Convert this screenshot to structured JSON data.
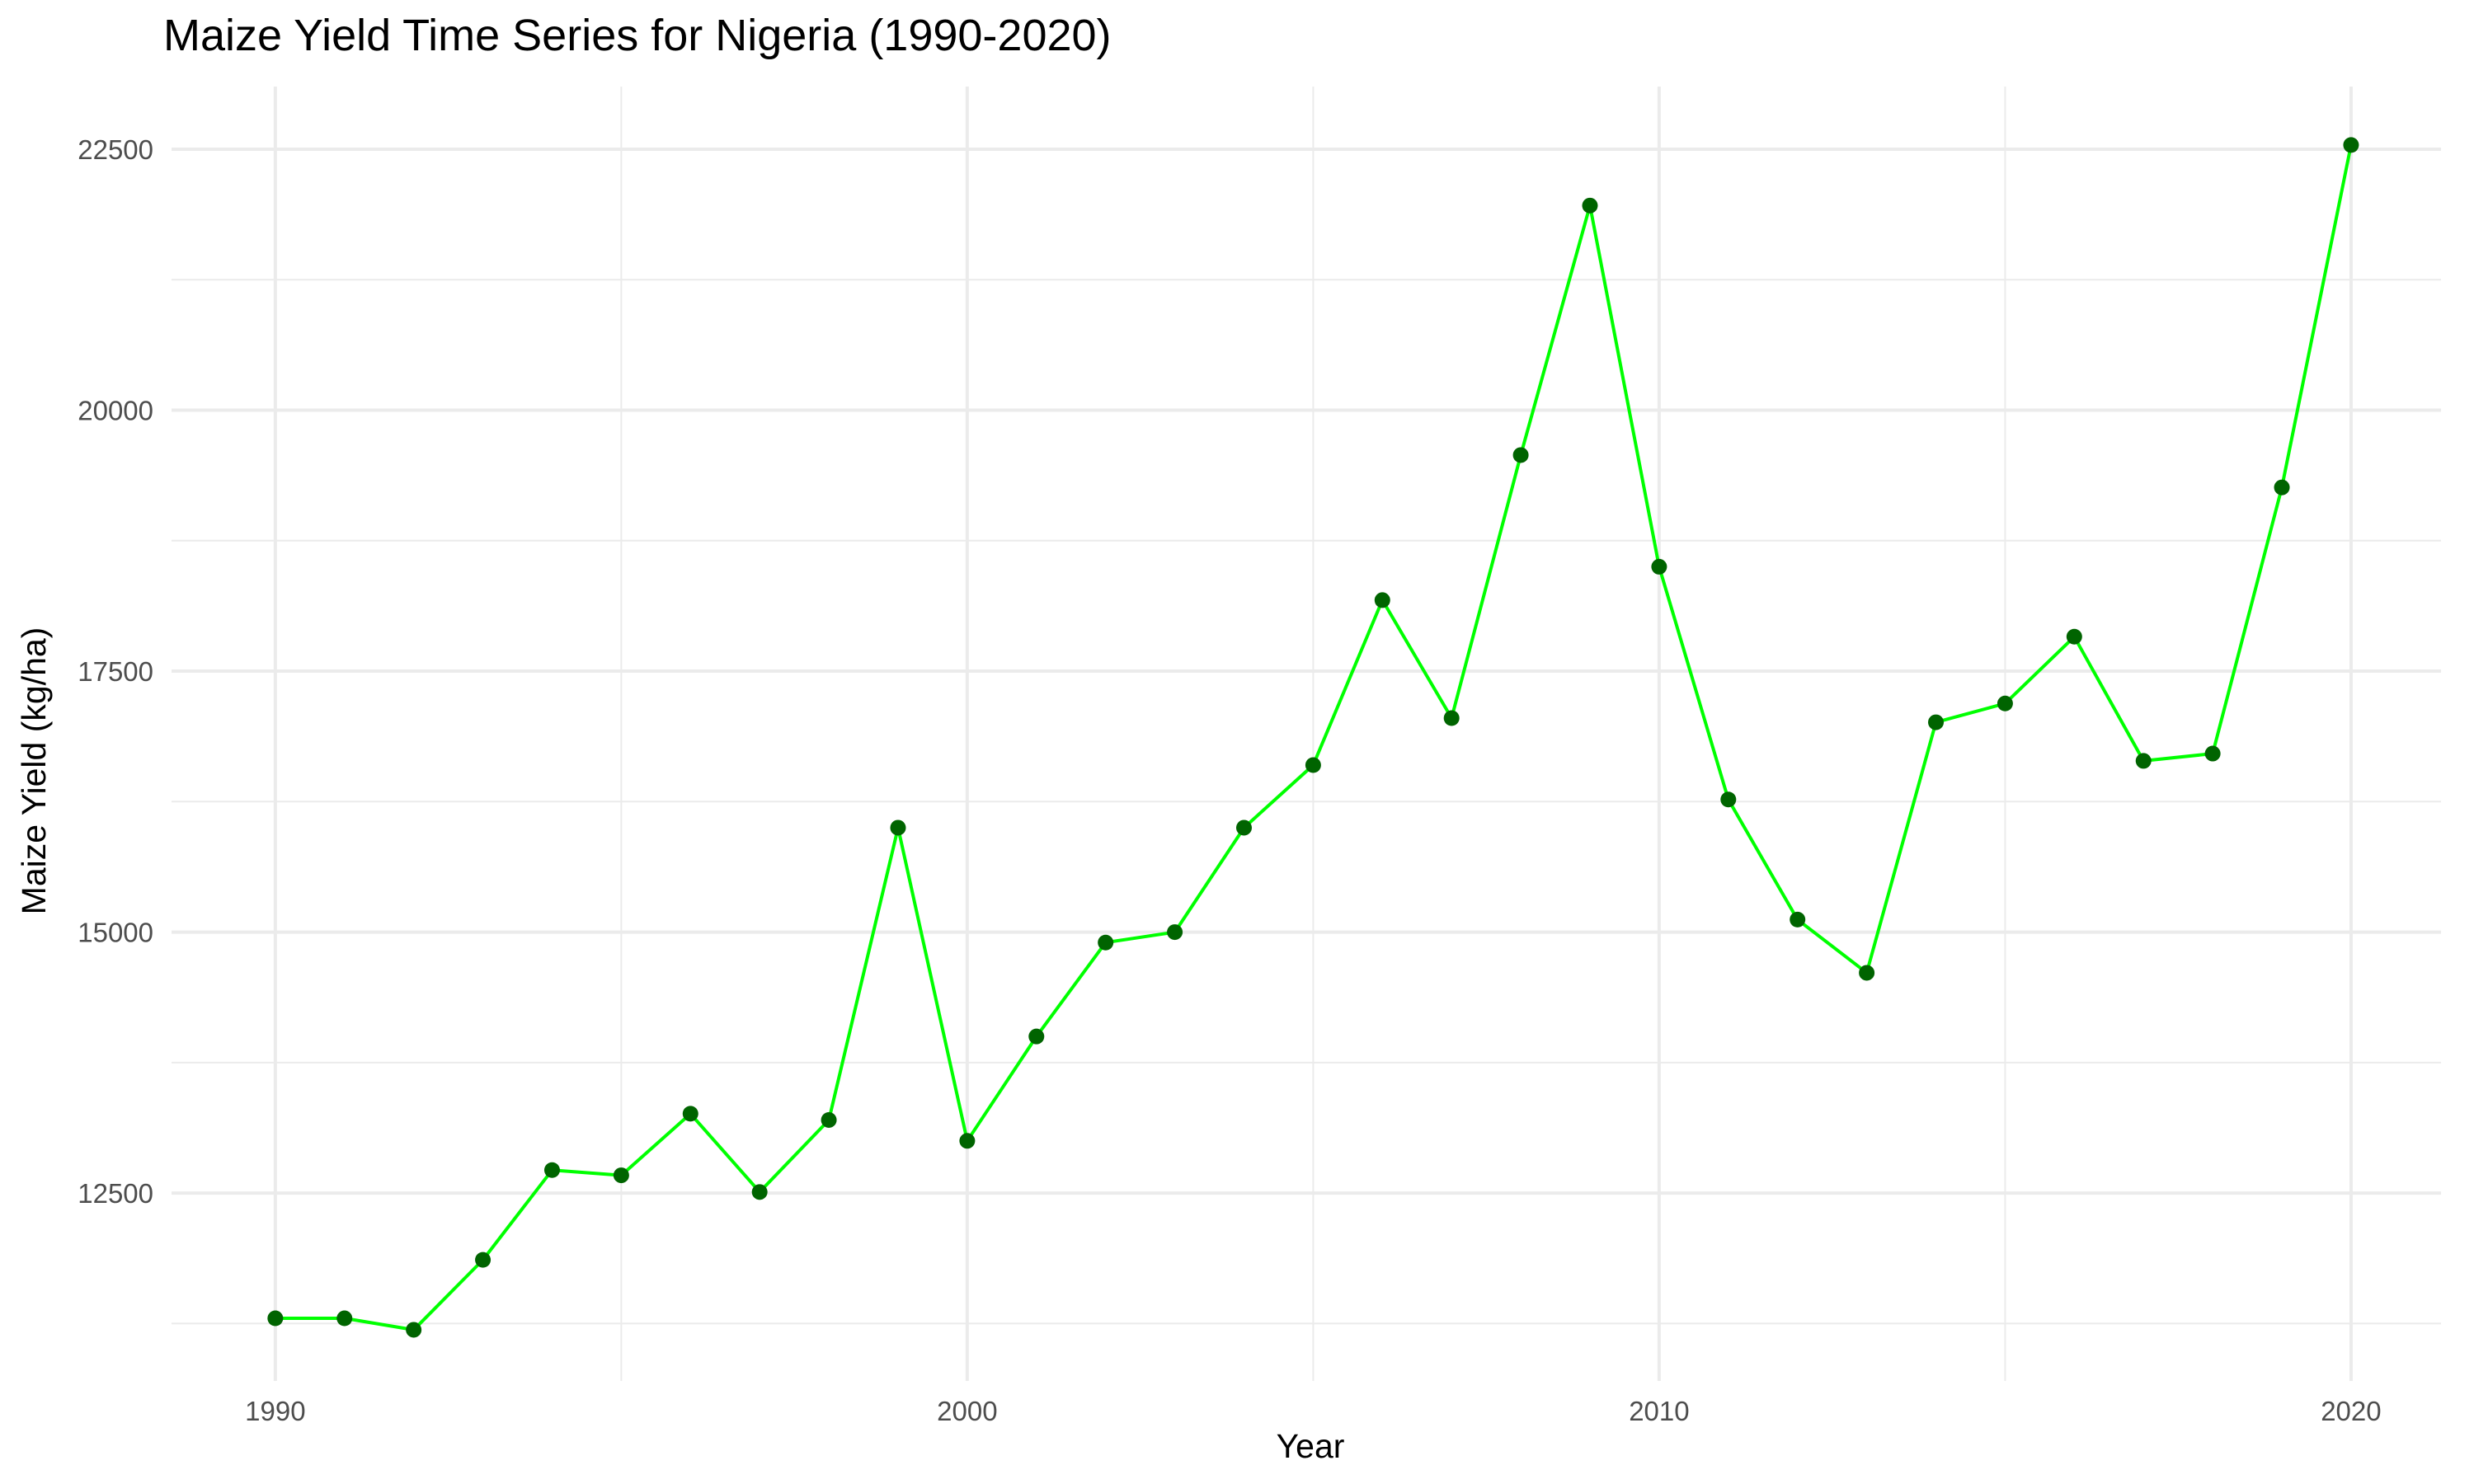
{
  "chart_data": {
    "type": "line",
    "title": "Maize Yield Time Series for Nigeria (1990-2020)",
    "xlabel": "Year",
    "ylabel": "Maize Yield (kg/ha)",
    "x": [
      1990,
      1991,
      1992,
      1993,
      1994,
      1995,
      1996,
      1997,
      1998,
      1999,
      2000,
      2001,
      2002,
      2003,
      2004,
      2005,
      2006,
      2007,
      2008,
      2009,
      2010,
      2011,
      2012,
      2013,
      2014,
      2015,
      2016,
      2017,
      2018,
      2019,
      2020
    ],
    "series": [
      {
        "values": [
          11300,
          11300,
          11190,
          11860,
          12720,
          12670,
          13260,
          12510,
          13200,
          16000,
          13000,
          14000,
          14900,
          15000,
          16000,
          16600,
          18180,
          17050,
          19570,
          21960,
          18500,
          16270,
          15120,
          14610,
          17010,
          17190,
          17830,
          16640,
          16710,
          19260,
          22540
        ]
      }
    ],
    "xlim": [
      1988.5,
      2021.3
    ],
    "ylim": [
      10700,
      23100
    ],
    "x_ticks": [
      1990,
      2000,
      2010,
      2020
    ],
    "x_tick_labels": [
      "1990",
      "2000",
      "2010",
      "2020"
    ],
    "x_minor_ticks": [
      1995,
      2005,
      2015
    ],
    "y_ticks": [
      12500,
      15000,
      17500,
      20000,
      22500
    ],
    "y_tick_labels": [
      "12500",
      "15000",
      "17500",
      "20000",
      "22500"
    ],
    "y_minor_ticks": [
      11250,
      13750,
      16250,
      18750,
      21250
    ],
    "grid": true,
    "line_color": "#00ff00",
    "point_color": "#006400",
    "grid_color": "#ebebeb"
  }
}
